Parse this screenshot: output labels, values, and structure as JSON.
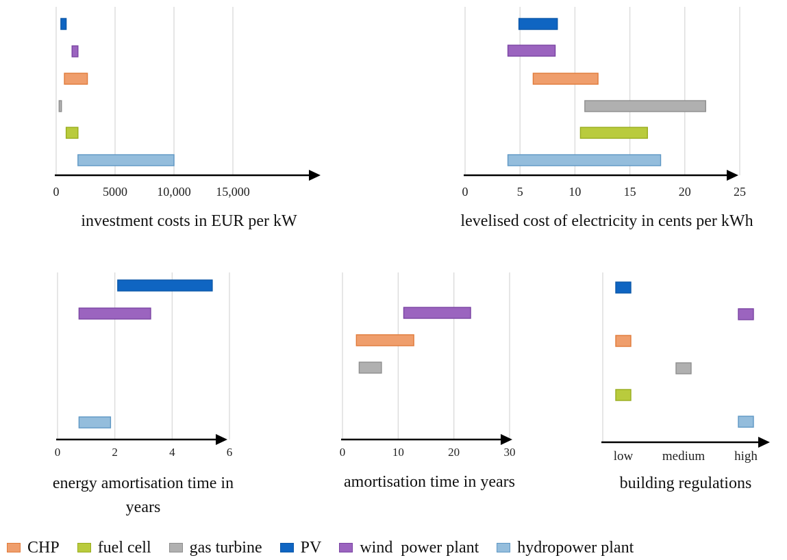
{
  "colors": {
    "CHP": {
      "fill": "#EF9E6C",
      "stroke": "#E07A3A"
    },
    "fuel cell": {
      "fill": "#B9CB3D",
      "stroke": "#98AC1E"
    },
    "gas turbine": {
      "fill": "#B0B0B0",
      "stroke": "#8E8E8E"
    },
    "PV": {
      "fill": "#0F65C2",
      "stroke": "#0B57A8"
    },
    "wind  power plant": {
      "fill": "#9B64BF",
      "stroke": "#7A44A3"
    },
    "hydropower plant": {
      "fill": "#94BDDC",
      "stroke": "#5E97C4"
    }
  },
  "legend": [
    {
      "label": "CHP",
      "key": "CHP"
    },
    {
      "label": "fuel cell",
      "key": "fuel cell"
    },
    {
      "label": "gas turbine",
      "key": "gas turbine"
    },
    {
      "label": "PV",
      "key": "PV"
    },
    {
      "label": "wind  power plant",
      "key": "wind  power plant"
    },
    {
      "label": "hydropower plant",
      "key": "hydropower plant"
    }
  ],
  "chart_data": [
    {
      "type": "bar",
      "orientation": "horizontal-range",
      "xlabel": "investment costs in EUR per kW",
      "xlim": [
        0,
        15000
      ],
      "grid": true,
      "ticks": [
        0,
        5000,
        10000,
        15000
      ],
      "tick_labels": [
        "0",
        "5000",
        "10,000",
        "15,000"
      ],
      "series": [
        {
          "key": "PV",
          "range": [
            400,
            850
          ]
        },
        {
          "key": "wind  power plant",
          "range": [
            1350,
            1850
          ]
        },
        {
          "key": "CHP",
          "range": [
            700,
            2650
          ]
        },
        {
          "key": "gas turbine",
          "range": [
            250,
            450
          ]
        },
        {
          "key": "fuel cell",
          "range": [
            850,
            1850
          ]
        },
        {
          "key": "hydropower plant",
          "range": [
            1850,
            10000
          ]
        }
      ]
    },
    {
      "type": "bar",
      "orientation": "horizontal-range",
      "xlabel": "levelised cost of electricity in cents per kWh",
      "xlim": [
        0,
        25
      ],
      "grid": true,
      "ticks": [
        0,
        5,
        10,
        15,
        20,
        25
      ],
      "tick_labels": [
        "0",
        "5",
        "10",
        "15",
        "20",
        "25"
      ],
      "series": [
        {
          "key": "PV",
          "range": [
            4.9,
            8.4
          ]
        },
        {
          "key": "wind  power plant",
          "range": [
            3.9,
            8.2
          ]
        },
        {
          "key": "CHP",
          "range": [
            6.2,
            12.1
          ]
        },
        {
          "key": "gas turbine",
          "range": [
            10.9,
            21.9
          ]
        },
        {
          "key": "fuel cell",
          "range": [
            10.5,
            16.6
          ]
        },
        {
          "key": "hydropower plant",
          "range": [
            3.9,
            17.8
          ]
        }
      ]
    },
    {
      "type": "bar",
      "orientation": "horizontal-range",
      "xlabel": "energy amortisation time in years",
      "xlim": [
        0,
        6
      ],
      "grid": true,
      "ticks": [
        0,
        2,
        4,
        6
      ],
      "tick_labels": [
        "0",
        "2",
        "4",
        "6"
      ],
      "series": [
        {
          "key": "PV",
          "range": [
            2.1,
            5.4
          ]
        },
        {
          "key": "wind  power plant",
          "range": [
            0.75,
            3.25
          ]
        },
        {
          "key": "hydropower plant",
          "range": [
            0.75,
            1.85
          ]
        }
      ]
    },
    {
      "type": "bar",
      "orientation": "horizontal-range",
      "xlabel": "amortisation time in years",
      "xlim": [
        0,
        30
      ],
      "grid": true,
      "ticks": [
        0,
        10,
        20,
        30
      ],
      "tick_labels": [
        "0",
        "10",
        "20",
        "30"
      ],
      "series": [
        {
          "key": "wind  power plant",
          "range": [
            11,
            23
          ]
        },
        {
          "key": "CHP",
          "range": [
            2.5,
            12.8
          ]
        },
        {
          "key": "gas turbine",
          "range": [
            3,
            7
          ]
        }
      ]
    },
    {
      "type": "bar",
      "orientation": "horizontal-range",
      "xlabel": "building regulations",
      "categories": [
        "low",
        "medium",
        "high"
      ],
      "grid": false,
      "series": [
        {
          "key": "PV",
          "category": "low"
        },
        {
          "key": "wind  power plant",
          "category": "high"
        },
        {
          "key": "CHP",
          "category": "low"
        },
        {
          "key": "gas turbine",
          "category": "medium"
        },
        {
          "key": "fuel cell",
          "category": "low"
        },
        {
          "key": "hydropower plant",
          "category": "high"
        }
      ]
    }
  ]
}
